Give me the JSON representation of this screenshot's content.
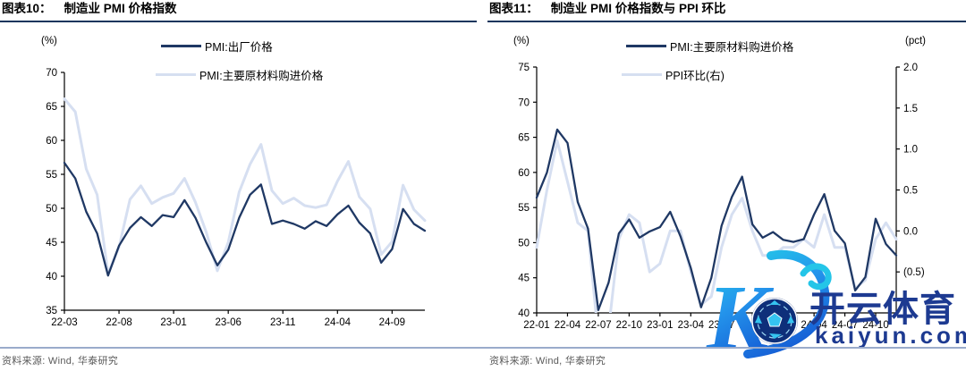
{
  "source_note": "资料来源: Wind, 华泰研究",
  "watermark": {
    "brand": "开云体育",
    "domain": "kaiyun.com",
    "colors": {
      "text": "#1d3a91",
      "gradient_start": "#24c5e8",
      "gradient_end": "#1660d6",
      "ball": "#0e2f7a",
      "ball_accent": "#35c4f0"
    }
  },
  "chart_data": [
    {
      "type": "line",
      "figure_label": "图表10：",
      "title": "制造业 PMI 价格指数",
      "ylabel": "(%)",
      "ylim": [
        35,
        70
      ],
      "yticks": [
        35,
        40,
        45,
        50,
        55,
        60,
        65,
        70
      ],
      "grid": false,
      "legend_position": "top",
      "xtick_every": 5,
      "x": [
        "22-03",
        "22-04",
        "22-05",
        "22-06",
        "22-07",
        "22-08",
        "22-09",
        "22-10",
        "22-11",
        "22-12",
        "23-01",
        "23-02",
        "23-03",
        "23-04",
        "23-05",
        "23-06",
        "23-07",
        "23-08",
        "23-09",
        "23-10",
        "23-11",
        "23-12",
        "24-01",
        "24-02",
        "24-03",
        "24-04",
        "24-05",
        "24-06",
        "24-07",
        "24-08",
        "24-09",
        "24-10",
        "24-11",
        "24-12"
      ],
      "series": [
        {
          "name": "PMI:出厂价格",
          "axis": "left",
          "color": "#1f3864",
          "line_width": 2.3,
          "values": [
            56.7,
            54.4,
            49.5,
            46.3,
            40.1,
            44.5,
            47.1,
            48.7,
            47.4,
            49.0,
            48.7,
            51.2,
            48.6,
            44.9,
            41.6,
            43.9,
            48.6,
            52.0,
            53.5,
            47.7,
            48.2,
            47.7,
            47.0,
            48.1,
            47.4,
            49.1,
            50.4,
            47.9,
            46.3,
            42.0,
            44.0,
            49.9,
            47.7,
            46.7
          ]
        },
        {
          "name": "PMI:主要原材料购进价格",
          "axis": "left",
          "color": "#d6dff1",
          "line_width": 3,
          "values": [
            66.1,
            64.2,
            55.8,
            52.0,
            40.4,
            44.3,
            51.3,
            53.3,
            50.7,
            51.6,
            52.2,
            54.4,
            50.9,
            46.4,
            40.8,
            45.0,
            52.4,
            56.5,
            59.4,
            52.6,
            50.7,
            51.5,
            50.4,
            50.1,
            50.5,
            54.0,
            56.9,
            51.7,
            49.9,
            43.2,
            45.1,
            53.4,
            49.8,
            48.2
          ]
        }
      ]
    },
    {
      "type": "line",
      "figure_label": "图表11：",
      "title": "制造业 PMI 价格指数与 PPI 环比",
      "ylabel": "(%)",
      "ylim": [
        40,
        75
      ],
      "yticks": [
        40,
        45,
        50,
        55,
        60,
        65,
        70,
        75
      ],
      "grid": false,
      "legend_position": "top",
      "xtick_every": 3,
      "right_axis": {
        "label": "(pct)",
        "ylim": [
          -1.0,
          2.0
        ],
        "ticks": [
          {
            "v": 2.0,
            "label": "2.0"
          },
          {
            "v": 1.5,
            "label": "1.5"
          },
          {
            "v": 1.0,
            "label": "1.0"
          },
          {
            "v": 0.5,
            "label": "0.5"
          },
          {
            "v": 0.0,
            "label": "0.0"
          },
          {
            "v": -0.5,
            "label": "(0.5)"
          }
        ]
      },
      "x": [
        "22-01",
        "22-02",
        "22-03",
        "22-04",
        "22-05",
        "22-06",
        "22-07",
        "22-08",
        "22-09",
        "22-10",
        "22-11",
        "22-12",
        "23-01",
        "23-02",
        "23-03",
        "23-04",
        "23-05",
        "23-06",
        "23-07",
        "23-08",
        "23-09",
        "23-10",
        "23-11",
        "23-12",
        "24-01",
        "24-02",
        "24-03",
        "24-04",
        "24-05",
        "24-06",
        "24-07",
        "24-08",
        "24-09",
        "24-10",
        "24-11",
        "24-12"
      ],
      "series": [
        {
          "name": "PMI:主要原材料购进价格",
          "axis": "left",
          "color": "#1f3864",
          "line_width": 2.3,
          "values": [
            56.4,
            60.0,
            66.1,
            64.2,
            55.8,
            52.0,
            40.4,
            44.3,
            51.3,
            53.3,
            50.7,
            51.6,
            52.2,
            54.4,
            50.9,
            46.4,
            40.8,
            45.0,
            52.4,
            56.5,
            59.4,
            52.6,
            50.7,
            51.5,
            50.4,
            50.1,
            50.5,
            54.0,
            56.9,
            51.7,
            49.9,
            43.2,
            45.1,
            53.4,
            49.8,
            48.2
          ]
        },
        {
          "name": "PPI环比(右)",
          "axis": "right",
          "color": "#d6dff1",
          "line_width": 3,
          "values": [
            -0.2,
            0.5,
            1.1,
            0.6,
            0.1,
            0.0,
            -1.3,
            -1.2,
            -0.1,
            0.2,
            0.1,
            -0.5,
            -0.4,
            0.0,
            0.0,
            -0.5,
            -0.9,
            -0.8,
            -0.2,
            0.2,
            0.4,
            0.0,
            -0.3,
            -0.3,
            -0.2,
            -0.2,
            -0.1,
            -0.2,
            0.2,
            -0.2,
            -0.2,
            -0.7,
            -0.6,
            -0.1,
            0.1,
            -0.1
          ]
        }
      ]
    }
  ]
}
